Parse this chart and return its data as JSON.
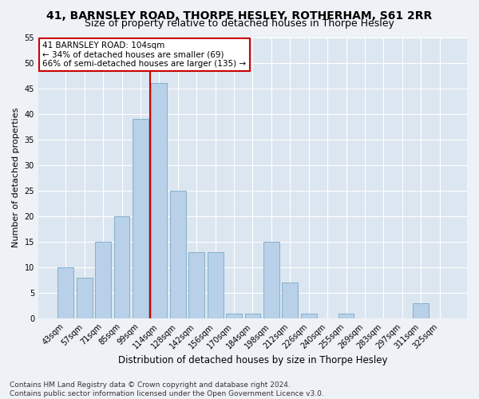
{
  "title": "41, BARNSLEY ROAD, THORPE HESLEY, ROTHERHAM, S61 2RR",
  "subtitle": "Size of property relative to detached houses in Thorpe Hesley",
  "xlabel": "Distribution of detached houses by size in Thorpe Hesley",
  "ylabel": "Number of detached properties",
  "categories": [
    "43sqm",
    "57sqm",
    "71sqm",
    "85sqm",
    "99sqm",
    "114sqm",
    "128sqm",
    "142sqm",
    "156sqm",
    "170sqm",
    "184sqm",
    "198sqm",
    "212sqm",
    "226sqm",
    "240sqm",
    "255sqm",
    "269sqm",
    "283sqm",
    "297sqm",
    "311sqm",
    "325sqm"
  ],
  "values": [
    10,
    8,
    15,
    20,
    39,
    46,
    25,
    13,
    13,
    1,
    1,
    15,
    7,
    1,
    0,
    1,
    0,
    0,
    0,
    3,
    0
  ],
  "bar_color": "#b8d0e8",
  "bar_edge_color": "#7aaac8",
  "vline_color": "#cc0000",
  "vline_x_index": 5,
  "annotation_text": "41 BARNSLEY ROAD: 104sqm\n← 34% of detached houses are smaller (69)\n66% of semi-detached houses are larger (135) →",
  "annotation_box_color": "#ffffff",
  "annotation_box_edge_color": "#cc0000",
  "ylim": [
    0,
    55
  ],
  "yticks": [
    0,
    5,
    10,
    15,
    20,
    25,
    30,
    35,
    40,
    45,
    50,
    55
  ],
  "plot_bg_color": "#dce6f0",
  "fig_bg_color": "#eef2f7",
  "grid_color": "#ffffff",
  "title_fontsize": 10,
  "subtitle_fontsize": 9,
  "xlabel_fontsize": 8.5,
  "ylabel_fontsize": 8,
  "tick_fontsize": 7,
  "annotation_fontsize": 7.5,
  "footer_fontsize": 6.5,
  "footer": "Contains HM Land Registry data © Crown copyright and database right 2024.\nContains public sector information licensed under the Open Government Licence v3.0."
}
